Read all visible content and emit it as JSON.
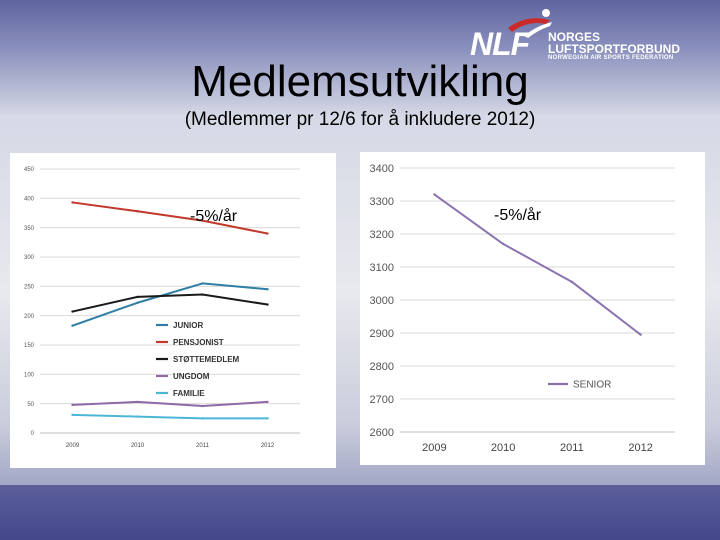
{
  "slide": {
    "title": "Medlemsutvikling",
    "subtitle": "(Medlemmer pr 12/6 for å inkludere 2012)"
  },
  "logo": {
    "abbr": "NLF",
    "line1": "NORGES",
    "line2": "LUFTSPORTFORBUND",
    "line3": "NORWEGIAN AIR SPORTS FEDERATION",
    "colors": {
      "text": "#ffffff",
      "accent": "#cc2a2a"
    }
  },
  "chart_data": [
    {
      "type": "line",
      "title": "",
      "xlabel": "",
      "ylabel": "",
      "annotation": "-5%/år",
      "x": [
        "2009",
        "2010",
        "2011",
        "2012"
      ],
      "yticks": [
        "0",
        "50",
        "100",
        "150",
        "200",
        "250",
        "300",
        "350",
        "400",
        "450"
      ],
      "ylim": [
        0,
        450
      ],
      "grid": true,
      "legend": "center",
      "series": [
        {
          "name": "JUNIOR",
          "color": "#2f7ea6",
          "values": [
            183,
            222,
            255,
            245
          ]
        },
        {
          "name": "PENSJONIST",
          "color": "#c0392b",
          "values": [
            393,
            378,
            362,
            340
          ]
        },
        {
          "name": "STØTTEMEDLEM",
          "color": "#1a1a1a",
          "values": [
            207,
            232,
            236,
            219
          ]
        },
        {
          "name": "UNGDOM",
          "color": "#8e6aa6",
          "values": [
            48,
            53,
            46,
            53
          ]
        },
        {
          "name": "FAMILIE",
          "color": "#4bb7d6",
          "values": [
            31,
            28,
            25,
            25
          ]
        }
      ]
    },
    {
      "type": "line",
      "title": "",
      "xlabel": "",
      "ylabel": "",
      "annotation": "-5%/år",
      "x": [
        "2009",
        "2010",
        "2011",
        "2012"
      ],
      "yticks": [
        "2600",
        "2700",
        "2800",
        "2900",
        "3000",
        "3100",
        "3200",
        "3300",
        "3400"
      ],
      "ylim": [
        2600,
        3400
      ],
      "grid": true,
      "legend": "bottom-right",
      "series": [
        {
          "name": "SENIOR",
          "color": "#8b73b0",
          "values": [
            3320,
            3170,
            3055,
            2895
          ]
        }
      ]
    }
  ]
}
